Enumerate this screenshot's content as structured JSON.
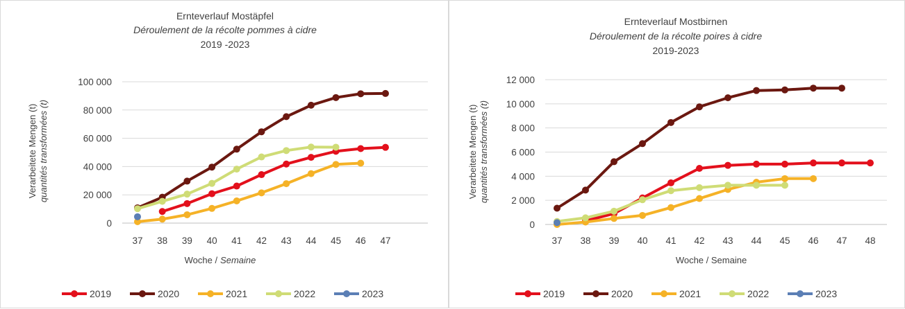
{
  "chart_data": [
    {
      "type": "line",
      "title": "Ernteverlauf Mostäpfel",
      "subtitle": "Déroulement de la récolte pommes à cidre",
      "period": "2019 -2023",
      "xlabel_de": "Woche /",
      "xlabel_fr": "Semaine",
      "ylabel_de": "Verarbeitete Mengen (t)",
      "ylabel_fr": "quantités transformées (t)",
      "categories": [
        "37",
        "38",
        "39",
        "40",
        "41",
        "42",
        "43",
        "44",
        "45",
        "46",
        "47"
      ],
      "ylim": [
        0,
        100000
      ],
      "yticks": [
        0,
        20000,
        40000,
        60000,
        80000,
        100000
      ],
      "ytick_labels": [
        "0",
        "20 000",
        "40 000",
        "60 000",
        "80 000",
        "100 000"
      ],
      "grid": true,
      "legend_position": "bottom",
      "series": [
        {
          "name": "2019",
          "color": "#e3101c",
          "values": [
            null,
            8200,
            13800,
            20800,
            26200,
            34300,
            41800,
            46500,
            50800,
            52700,
            53600
          ]
        },
        {
          "name": "2020",
          "color": "#6b1810",
          "values": [
            10800,
            18300,
            29700,
            39600,
            52300,
            64600,
            75300,
            83400,
            88800,
            91500,
            91700
          ]
        },
        {
          "name": "2021",
          "color": "#f5b227",
          "values": [
            1000,
            2800,
            5900,
            10400,
            15700,
            21400,
            27900,
            35000,
            41500,
            42400,
            null
          ]
        },
        {
          "name": "2022",
          "color": "#cfdc76",
          "values": [
            10200,
            15400,
            20500,
            28100,
            38200,
            46800,
            51300,
            53800,
            53700,
            null,
            null
          ]
        },
        {
          "name": "2023",
          "color": "#5b7fb5",
          "values": [
            4500,
            null,
            null,
            null,
            null,
            null,
            null,
            null,
            null,
            null,
            null
          ]
        }
      ]
    },
    {
      "type": "line",
      "title": "Ernteverlauf Mostbirnen",
      "subtitle": "Déroulement de la récolte poires à cidre",
      "period": "2019-2023",
      "xlabel": "Woche / Semaine",
      "ylabel_de": "Verarbeitete Mengen (t)",
      "ylabel_fr": "quantités transformées (t)",
      "categories": [
        "37",
        "38",
        "39",
        "40",
        "41",
        "42",
        "43",
        "44",
        "45",
        "46",
        "47",
        "48"
      ],
      "ylim": [
        0,
        12000
      ],
      "yticks": [
        0,
        2000,
        4000,
        6000,
        8000,
        10000,
        12000
      ],
      "ytick_labels": [
        "0",
        "2 000",
        "4 000",
        "6 000",
        "8 000",
        "10 000",
        "12 000"
      ],
      "grid": true,
      "legend_position": "bottom",
      "series": [
        {
          "name": "2019",
          "color": "#e3101c",
          "values": [
            null,
            300,
            900,
            2200,
            3450,
            4650,
            4900,
            5000,
            5000,
            5100,
            5100,
            5100
          ]
        },
        {
          "name": "2020",
          "color": "#6b1810",
          "values": [
            1350,
            2850,
            5200,
            6700,
            8450,
            9750,
            10500,
            11100,
            11150,
            11300,
            11300,
            null
          ]
        },
        {
          "name": "2021",
          "color": "#f5b227",
          "values": [
            0,
            200,
            500,
            750,
            1400,
            2150,
            2900,
            3500,
            3800,
            3800,
            null,
            null
          ]
        },
        {
          "name": "2022",
          "color": "#cfdc76",
          "values": [
            250,
            550,
            1100,
            2050,
            2800,
            3050,
            3250,
            3250,
            3250,
            null,
            null,
            null
          ]
        },
        {
          "name": "2023",
          "color": "#5b7fb5",
          "values": [
            150,
            null,
            null,
            null,
            null,
            null,
            null,
            null,
            null,
            null,
            null,
            null
          ]
        }
      ]
    }
  ]
}
